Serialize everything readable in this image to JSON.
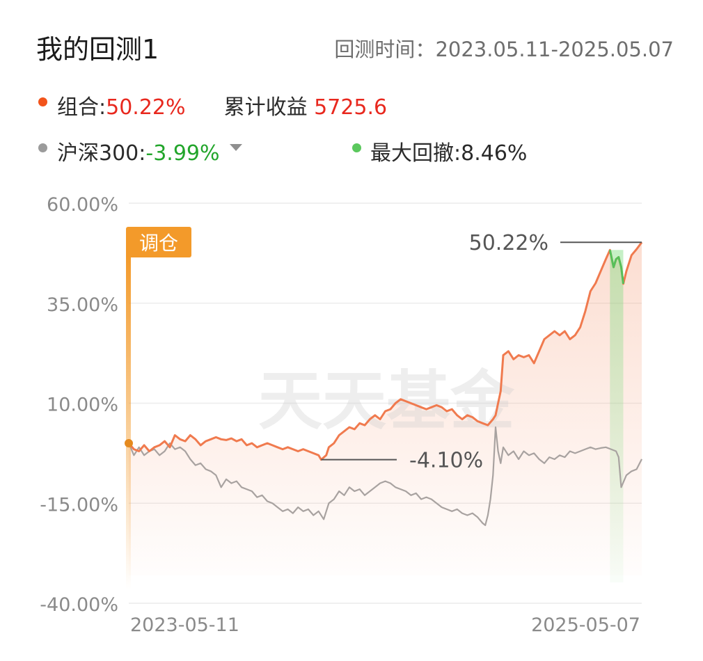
{
  "header": {
    "title": "我的回测1",
    "range_label": "回测时间：",
    "range_value": "2023.05.11-2025.05.07"
  },
  "legend": {
    "portfolio": {
      "label": "组合:",
      "value": "50.22%",
      "dot_color": "#f2541b",
      "value_color": "#e8281e"
    },
    "cumulative": {
      "label": "累计收益",
      "value": "5725.6",
      "value_color": "#e8281e"
    },
    "benchmark": {
      "label": "沪深300:",
      "value": "-3.99%",
      "dot_color": "#9b9b9b",
      "value_color": "#22a52b"
    },
    "drawdown": {
      "label": "最大回撤:",
      "value": "8.46%",
      "dot_color": "#5bc85d"
    }
  },
  "watermark": "天天基金",
  "rebalance_tag": "调仓",
  "chart_data": {
    "type": "line",
    "ylim": [
      -40,
      60
    ],
    "yticks": [
      "60.00%",
      "35.00%",
      "10.00%",
      "-15.00%",
      "-40.00%"
    ],
    "x_labels": [
      "2023-05-11",
      "2025-05-07"
    ],
    "colors": {
      "portfolio": "#f07a4e",
      "benchmark": "#a8a2a0",
      "drawdown": "#56c05a",
      "tag": "#f39a2a"
    },
    "annotations": [
      {
        "label": "50.22%",
        "value": 50.22
      },
      {
        "label": "-4.10%",
        "value": -4.1
      }
    ],
    "drawdown_window": [
      0.938,
      0.964
    ],
    "series": [
      {
        "name": "组合",
        "points": [
          [
            0,
            0
          ],
          [
            0.01,
            -1.5
          ],
          [
            0.02,
            -2
          ],
          [
            0.03,
            -0.5
          ],
          [
            0.04,
            -2
          ],
          [
            0.05,
            -1
          ],
          [
            0.06,
            -0.5
          ],
          [
            0.07,
            0.5
          ],
          [
            0.08,
            -1
          ],
          [
            0.09,
            2
          ],
          [
            0.1,
            1
          ],
          [
            0.11,
            0.5
          ],
          [
            0.12,
            2
          ],
          [
            0.13,
            1
          ],
          [
            0.14,
            -0.5
          ],
          [
            0.15,
            0.5
          ],
          [
            0.16,
            1
          ],
          [
            0.17,
            1.5
          ],
          [
            0.18,
            1
          ],
          [
            0.19,
            0.8
          ],
          [
            0.2,
            1.2
          ],
          [
            0.21,
            0.5
          ],
          [
            0.22,
            1
          ],
          [
            0.23,
            -0.5
          ],
          [
            0.24,
            0
          ],
          [
            0.25,
            -1
          ],
          [
            0.26,
            -0.5
          ],
          [
            0.27,
            0
          ],
          [
            0.28,
            -0.5
          ],
          [
            0.29,
            -1
          ],
          [
            0.3,
            -1.5
          ],
          [
            0.31,
            -1
          ],
          [
            0.32,
            -1.5
          ],
          [
            0.33,
            -2
          ],
          [
            0.34,
            -1.5
          ],
          [
            0.35,
            -2
          ],
          [
            0.36,
            -2.5
          ],
          [
            0.37,
            -3
          ],
          [
            0.375,
            -4.1
          ],
          [
            0.385,
            -3
          ],
          [
            0.39,
            -1
          ],
          [
            0.4,
            0
          ],
          [
            0.41,
            2
          ],
          [
            0.42,
            3
          ],
          [
            0.43,
            4
          ],
          [
            0.44,
            3.5
          ],
          [
            0.45,
            5
          ],
          [
            0.46,
            4.5
          ],
          [
            0.47,
            6
          ],
          [
            0.48,
            7
          ],
          [
            0.49,
            6
          ],
          [
            0.5,
            8
          ],
          [
            0.51,
            8.5
          ],
          [
            0.52,
            10
          ],
          [
            0.53,
            11
          ],
          [
            0.54,
            10.5
          ],
          [
            0.55,
            10
          ],
          [
            0.56,
            9.5
          ],
          [
            0.57,
            9
          ],
          [
            0.58,
            8.5
          ],
          [
            0.59,
            9
          ],
          [
            0.6,
            9.5
          ],
          [
            0.61,
            9
          ],
          [
            0.62,
            8
          ],
          [
            0.63,
            8.5
          ],
          [
            0.64,
            7
          ],
          [
            0.65,
            6
          ],
          [
            0.66,
            7
          ],
          [
            0.67,
            6.5
          ],
          [
            0.68,
            5.5
          ],
          [
            0.69,
            5
          ],
          [
            0.7,
            4.5
          ],
          [
            0.71,
            6
          ],
          [
            0.715,
            7
          ],
          [
            0.72,
            10
          ],
          [
            0.725,
            13
          ],
          [
            0.73,
            22
          ],
          [
            0.74,
            23
          ],
          [
            0.75,
            21
          ],
          [
            0.76,
            22
          ],
          [
            0.77,
            21.5
          ],
          [
            0.78,
            22
          ],
          [
            0.79,
            20
          ],
          [
            0.8,
            23
          ],
          [
            0.81,
            26
          ],
          [
            0.82,
            27
          ],
          [
            0.83,
            28
          ],
          [
            0.84,
            27
          ],
          [
            0.85,
            28
          ],
          [
            0.86,
            26
          ],
          [
            0.87,
            27
          ],
          [
            0.88,
            29
          ],
          [
            0.89,
            33
          ],
          [
            0.9,
            38
          ],
          [
            0.91,
            40
          ],
          [
            0.92,
            43
          ],
          [
            0.93,
            46
          ],
          [
            0.938,
            48.3
          ],
          [
            0.945,
            44
          ],
          [
            0.95,
            46
          ],
          [
            0.955,
            46.5
          ],
          [
            0.96,
            44
          ],
          [
            0.964,
            39.84
          ],
          [
            0.97,
            43
          ],
          [
            0.975,
            45
          ],
          [
            0.98,
            47
          ],
          [
            0.99,
            48.5
          ],
          [
            1,
            50.22
          ]
        ]
      },
      {
        "name": "沪深300",
        "points": [
          [
            0,
            0
          ],
          [
            0.01,
            -3
          ],
          [
            0.02,
            -1
          ],
          [
            0.03,
            -3
          ],
          [
            0.04,
            -2
          ],
          [
            0.05,
            -1.5
          ],
          [
            0.06,
            -3
          ],
          [
            0.07,
            -2
          ],
          [
            0.08,
            0
          ],
          [
            0.09,
            -1.5
          ],
          [
            0.1,
            -1
          ],
          [
            0.11,
            -2
          ],
          [
            0.12,
            -4
          ],
          [
            0.13,
            -5.5
          ],
          [
            0.14,
            -5
          ],
          [
            0.15,
            -6.5
          ],
          [
            0.16,
            -7
          ],
          [
            0.17,
            -8
          ],
          [
            0.18,
            -11
          ],
          [
            0.19,
            -9
          ],
          [
            0.2,
            -10
          ],
          [
            0.21,
            -9.5
          ],
          [
            0.22,
            -11
          ],
          [
            0.23,
            -11.5
          ],
          [
            0.24,
            -12
          ],
          [
            0.25,
            -13.5
          ],
          [
            0.26,
            -13
          ],
          [
            0.27,
            -14.5
          ],
          [
            0.28,
            -15
          ],
          [
            0.29,
            -16
          ],
          [
            0.3,
            -17
          ],
          [
            0.31,
            -16.5
          ],
          [
            0.32,
            -17.5
          ],
          [
            0.33,
            -16
          ],
          [
            0.34,
            -17
          ],
          [
            0.35,
            -16.5
          ],
          [
            0.36,
            -18
          ],
          [
            0.37,
            -17
          ],
          [
            0.38,
            -19
          ],
          [
            0.39,
            -15
          ],
          [
            0.4,
            -14
          ],
          [
            0.41,
            -12
          ],
          [
            0.42,
            -13
          ],
          [
            0.43,
            -11
          ],
          [
            0.44,
            -12
          ],
          [
            0.45,
            -11.5
          ],
          [
            0.46,
            -13
          ],
          [
            0.47,
            -12
          ],
          [
            0.48,
            -11
          ],
          [
            0.49,
            -10
          ],
          [
            0.5,
            -9.5
          ],
          [
            0.51,
            -10
          ],
          [
            0.52,
            -11
          ],
          [
            0.53,
            -11.5
          ],
          [
            0.54,
            -12
          ],
          [
            0.55,
            -13
          ],
          [
            0.56,
            -12.5
          ],
          [
            0.57,
            -14
          ],
          [
            0.58,
            -13.5
          ],
          [
            0.59,
            -14
          ],
          [
            0.6,
            -15
          ],
          [
            0.61,
            -16
          ],
          [
            0.62,
            -16.5
          ],
          [
            0.63,
            -17
          ],
          [
            0.64,
            -16.5
          ],
          [
            0.65,
            -17.5
          ],
          [
            0.66,
            -18
          ],
          [
            0.67,
            -17.5
          ],
          [
            0.68,
            -18.5
          ],
          [
            0.69,
            -20
          ],
          [
            0.695,
            -20.5
          ],
          [
            0.7,
            -18
          ],
          [
            0.705,
            -14
          ],
          [
            0.71,
            -8
          ],
          [
            0.715,
            4
          ],
          [
            0.72,
            -2
          ],
          [
            0.725,
            -5
          ],
          [
            0.73,
            -1
          ],
          [
            0.74,
            -3
          ],
          [
            0.75,
            -2
          ],
          [
            0.76,
            -4
          ],
          [
            0.77,
            -2
          ],
          [
            0.78,
            -3
          ],
          [
            0.79,
            -2.5
          ],
          [
            0.8,
            -4
          ],
          [
            0.81,
            -5
          ],
          [
            0.82,
            -3.5
          ],
          [
            0.83,
            -4
          ],
          [
            0.84,
            -3
          ],
          [
            0.85,
            -3.5
          ],
          [
            0.86,
            -2
          ],
          [
            0.87,
            -2.5
          ],
          [
            0.88,
            -2
          ],
          [
            0.89,
            -1.5
          ],
          [
            0.9,
            -1
          ],
          [
            0.91,
            -1.5
          ],
          [
            0.92,
            -1.2
          ],
          [
            0.93,
            -1
          ],
          [
            0.94,
            -1.5
          ],
          [
            0.95,
            -2
          ],
          [
            0.955,
            -3.5
          ],
          [
            0.96,
            -11
          ],
          [
            0.97,
            -8
          ],
          [
            0.98,
            -7
          ],
          [
            0.99,
            -6.5
          ],
          [
            1,
            -3.99
          ]
        ]
      }
    ]
  }
}
